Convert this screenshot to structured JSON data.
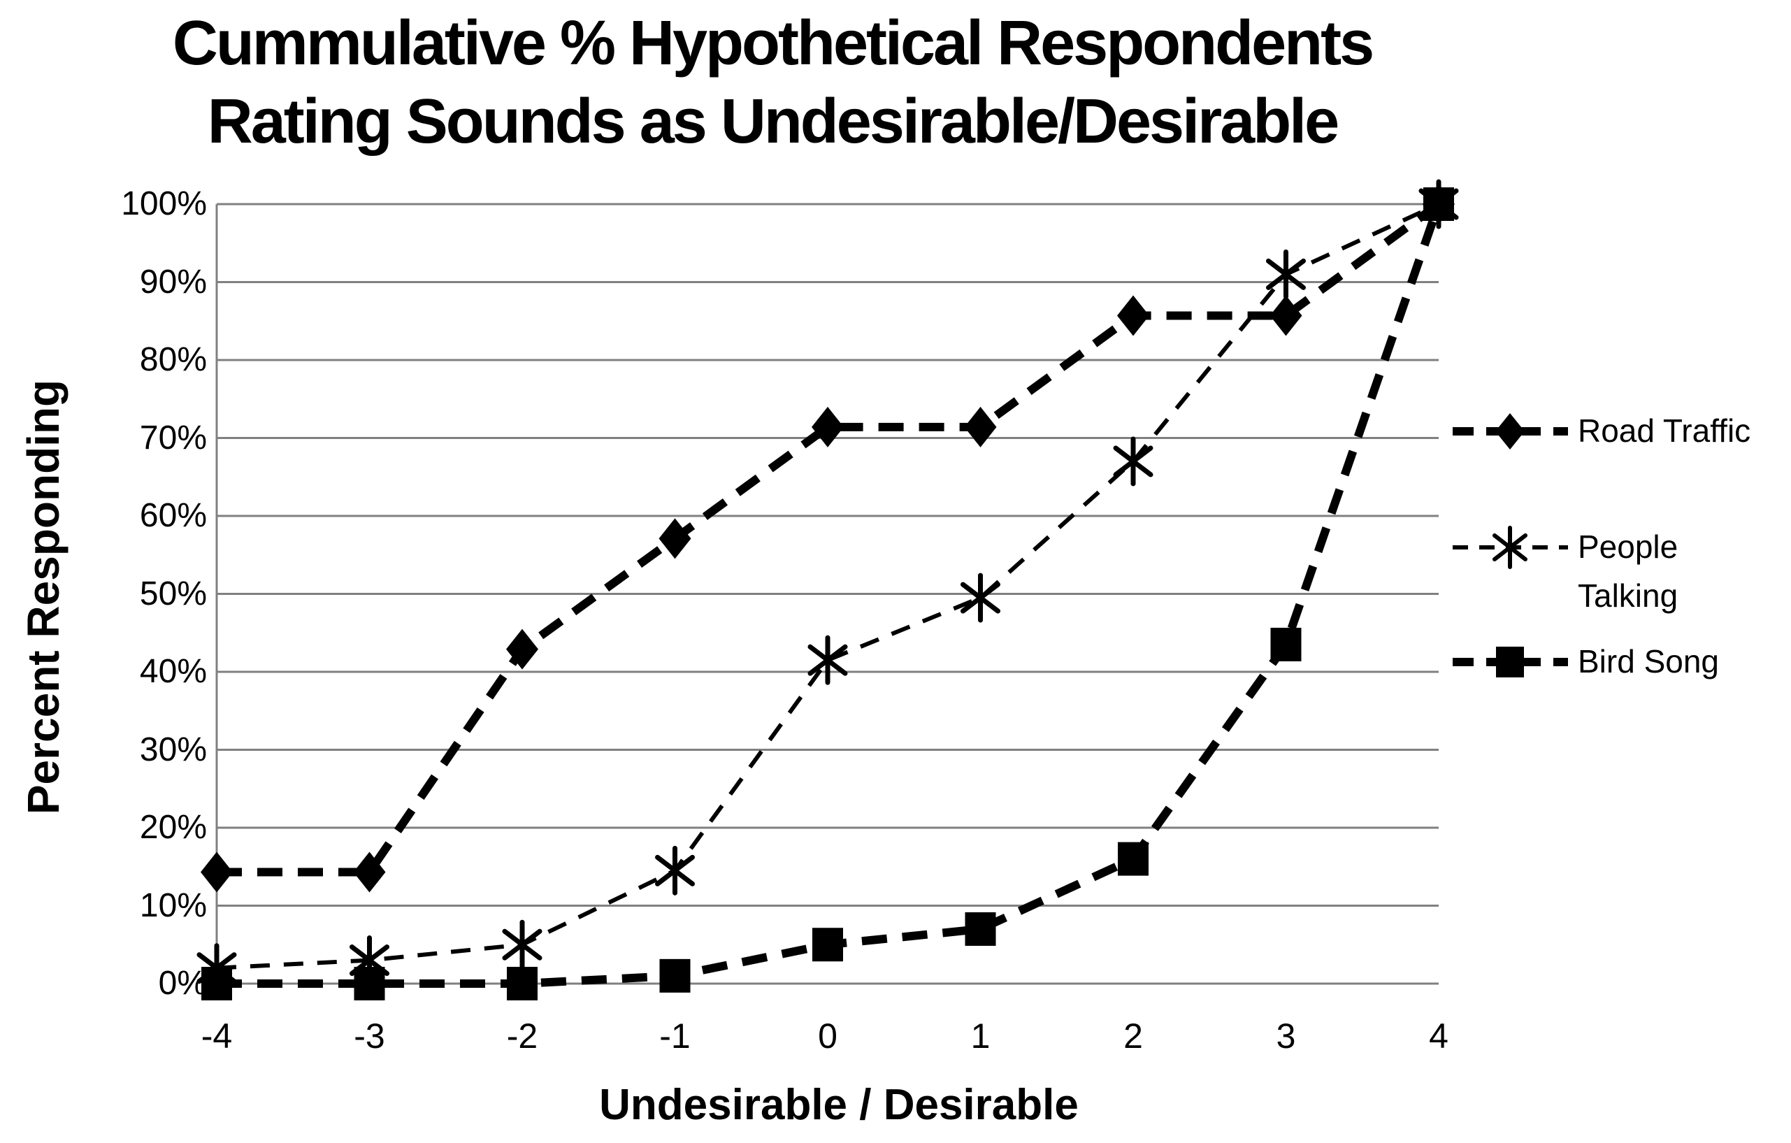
{
  "title": {
    "line1": "Cummulative % Hypothetical Respondents",
    "line2": "Rating Sounds as Undesirable/Desirable"
  },
  "y_axis": {
    "label": "Percent Responding",
    "ticks": [
      "0%",
      "10%",
      "20%",
      "30%",
      "40%",
      "50%",
      "60%",
      "70%",
      "80%",
      "90%",
      "100%"
    ]
  },
  "x_axis": {
    "label": "Undesirable / Desirable",
    "ticks": [
      "-4",
      "-3",
      "-2",
      "-1",
      "0",
      "1",
      "2",
      "3",
      "4"
    ]
  },
  "legend": {
    "items": [
      {
        "label": "Road Traffic",
        "label_lines": [
          "Road Traffic"
        ],
        "marker": "diamond",
        "line_style": "thick-dashed"
      },
      {
        "label": "People Talking",
        "label_lines": [
          "People",
          "Talking"
        ],
        "marker": "asterisk",
        "line_style": "thin-dashed"
      },
      {
        "label": "Bird Song",
        "label_lines": [
          "Bird Song"
        ],
        "marker": "square",
        "line_style": "thick-dashed"
      }
    ]
  },
  "colors": {
    "series": "#000000",
    "grid": "#808080",
    "background": "#ffffff",
    "text": "#000000"
  },
  "chart_data": {
    "type": "line",
    "title": "Cummulative % Hypothetical Respondents Rating Sounds as Undesirable/Desirable",
    "xlabel": "Undesirable / Desirable",
    "ylabel": "Percent Responding",
    "x": [
      -4,
      -3,
      -2,
      -1,
      0,
      1,
      2,
      3,
      4
    ],
    "ylim": [
      0,
      100
    ],
    "y_tick_values": [
      0,
      10,
      20,
      30,
      40,
      50,
      60,
      70,
      80,
      90,
      100
    ],
    "grid": "horizontal",
    "legend_position": "right",
    "series": [
      {
        "name": "Road Traffic",
        "marker": "diamond",
        "line_style": "thick-dashed",
        "values": [
          14.3,
          14.3,
          42.9,
          57.1,
          71.4,
          71.4,
          85.7,
          85.7,
          100
        ]
      },
      {
        "name": "People Talking",
        "marker": "asterisk",
        "line_style": "thin-dashed",
        "values": [
          2,
          3,
          5,
          14.5,
          41.5,
          49.5,
          67,
          91,
          100
        ]
      },
      {
        "name": "Bird Song",
        "marker": "square",
        "line_style": "thick-dashed",
        "values": [
          0,
          0,
          0,
          1,
          5,
          7,
          16,
          43.5,
          100
        ]
      }
    ]
  }
}
